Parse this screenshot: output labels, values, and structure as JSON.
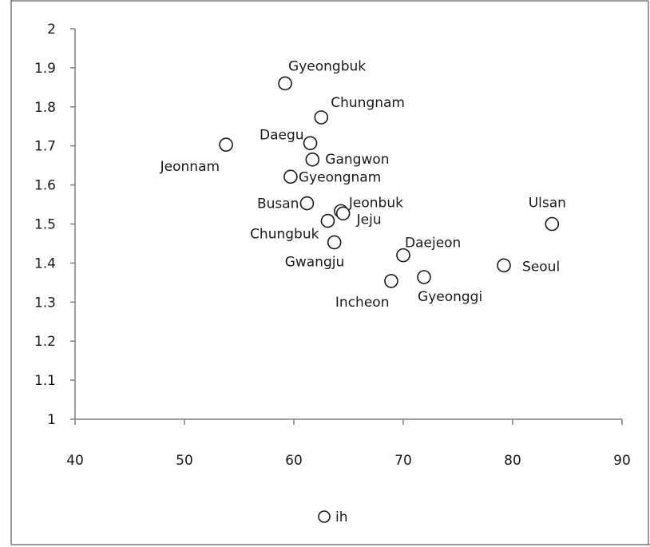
{
  "chart_data": {
    "type": "scatter",
    "title": "",
    "xlabel": "",
    "ylabel": "",
    "xlim": [
      40,
      90
    ],
    "ylim": [
      1,
      2
    ],
    "x_ticks": [
      "40",
      "50",
      "60",
      "70",
      "80",
      "90"
    ],
    "y_ticks": [
      "1",
      "1.1",
      "1.2",
      "1.3",
      "1.4",
      "1.5",
      "1.6",
      "1.7",
      "1.8",
      "1.9",
      "2"
    ],
    "grid": false,
    "legend": {
      "position": "bottom",
      "entries": [
        "ih"
      ]
    },
    "series": [
      {
        "name": "ih",
        "points": [
          {
            "label": "Gyeongbuk",
            "x": 59.2,
            "y": 1.86
          },
          {
            "label": "Chungnam",
            "x": 62.5,
            "y": 1.773
          },
          {
            "label": "Daegu",
            "x": 61.5,
            "y": 1.707
          },
          {
            "label": "Jeonnam",
            "x": 53.8,
            "y": 1.703
          },
          {
            "label": "Gangwon",
            "x": 61.7,
            "y": 1.665
          },
          {
            "label": "Gyeongnam",
            "x": 59.7,
            "y": 1.621
          },
          {
            "label": "Busan",
            "x": 61.2,
            "y": 1.553
          },
          {
            "label": "Jeonbuk",
            "x": 64.3,
            "y": 1.533
          },
          {
            "label": "Jeju",
            "x": 64.5,
            "y": 1.527
          },
          {
            "label": "Chungbuk",
            "x": 63.1,
            "y": 1.508
          },
          {
            "label": "Ulsan",
            "x": 83.6,
            "y": 1.5
          },
          {
            "label": "Gwangju",
            "x": 63.7,
            "y": 1.453
          },
          {
            "label": "Daejeon",
            "x": 70.0,
            "y": 1.42
          },
          {
            "label": "Seoul",
            "x": 79.2,
            "y": 1.394
          },
          {
            "label": "Gyeonggi",
            "x": 71.9,
            "y": 1.364
          },
          {
            "label": "Incheon",
            "x": 68.9,
            "y": 1.354
          }
        ]
      }
    ]
  }
}
